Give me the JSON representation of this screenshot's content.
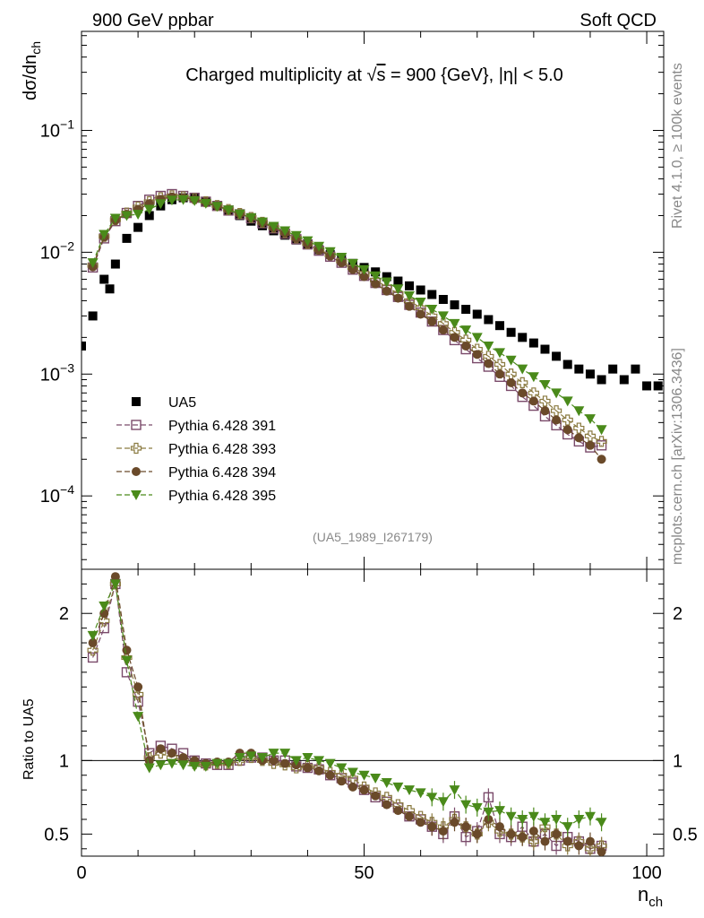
{
  "chart_data": [
    {
      "type": "scatter",
      "panel": "main",
      "header_left": "900 GeV ppbar",
      "header_right": "Soft QCD",
      "title_prefix": "Charged multiplicity at ",
      "title_sqrt": "√",
      "title_s": "s",
      "title_suffix": " = 900 {GeV}, |η| < 5.0",
      "ylabel": "dσ/dn",
      "ylabel_sub": "ch",
      "yscale": "log",
      "ylim": [
        2.5e-05,
        0.65
      ],
      "xlim": [
        0,
        103
      ],
      "ytick_labels": [
        {
          "base": "10",
          "exp": "−1"
        },
        {
          "base": "10",
          "exp": "−2"
        },
        {
          "base": "10",
          "exp": "−3"
        },
        {
          "base": "10",
          "exp": "−4"
        }
      ],
      "ytick_values": [
        0.1,
        0.01,
        0.001,
        0.0001
      ],
      "ref_tag": "(UA5_1989_I267179)",
      "side_label_top": "Rivet 4.1.0, ≥ 100k events",
      "side_label_bottom": "mcplots.cern.ch [arXiv:1306.3436]",
      "legend": [
        {
          "name": "UA5",
          "color": "#000000",
          "marker": "square-filled"
        },
        {
          "name": "Pythia 6.428 391",
          "color": "#7a4a6a",
          "marker": "square-open"
        },
        {
          "name": "Pythia 6.428 393",
          "color": "#8a7a40",
          "marker": "cross-open"
        },
        {
          "name": "Pythia 6.428 394",
          "color": "#6a4a2a",
          "marker": "circle-filled"
        },
        {
          "name": "Pythia 6.428 395",
          "color": "#4a8a1a",
          "marker": "triangle-down-filled"
        }
      ],
      "series": [
        {
          "name": "UA5",
          "x": [
            0,
            2,
            4,
            5,
            6,
            8,
            10,
            12,
            14,
            16,
            18,
            20,
            22,
            24,
            26,
            28,
            30,
            32,
            34,
            36,
            38,
            40,
            42,
            44,
            46,
            48,
            50,
            52,
            54,
            56,
            58,
            60,
            62,
            64,
            66,
            68,
            70,
            72,
            74,
            76,
            78,
            80,
            82,
            84,
            86,
            88,
            90,
            92,
            94,
            96,
            98,
            100,
            102
          ],
          "y": [
            0.0017,
            0.003,
            0.006,
            0.005,
            0.008,
            0.013,
            0.016,
            0.02,
            0.024,
            0.027,
            0.028,
            0.028,
            0.026,
            0.024,
            0.022,
            0.02,
            0.018,
            0.0165,
            0.015,
            0.0138,
            0.0126,
            0.0115,
            0.0105,
            0.0096,
            0.0088,
            0.0081,
            0.0075,
            0.0069,
            0.0063,
            0.0058,
            0.0053,
            0.0049,
            0.0045,
            0.0041,
            0.0037,
            0.0034,
            0.0031,
            0.0028,
            0.0025,
            0.0022,
            0.002,
            0.0018,
            0.0016,
            0.0014,
            0.0012,
            0.0011,
            0.001,
            0.0009,
            0.0011,
            0.0009,
            0.0011,
            0.0008,
            0.0008
          ]
        },
        {
          "name": "Pythia 6.428 391",
          "x": [
            2,
            4,
            6,
            8,
            10,
            12,
            14,
            16,
            18,
            20,
            22,
            24,
            26,
            28,
            30,
            32,
            34,
            36,
            38,
            40,
            42,
            44,
            46,
            48,
            50,
            52,
            54,
            56,
            58,
            60,
            62,
            64,
            66,
            68,
            70,
            72,
            74,
            76,
            78,
            80,
            82,
            84,
            86,
            88,
            90,
            92
          ],
          "y": [
            0.0075,
            0.013,
            0.018,
            0.021,
            0.024,
            0.027,
            0.029,
            0.03,
            0.029,
            0.028,
            0.026,
            0.024,
            0.022,
            0.0205,
            0.019,
            0.0173,
            0.0157,
            0.0142,
            0.0128,
            0.0116,
            0.0103,
            0.0092,
            0.0082,
            0.0072,
            0.0064,
            0.0056,
            0.0049,
            0.0043,
            0.0037,
            0.0032,
            0.0027,
            0.0023,
            0.0019,
            0.0016,
            0.00135,
            0.00115,
            0.00095,
            0.0008,
            0.00065,
            0.00055,
            0.00045,
            0.00038,
            0.00032,
            0.00028,
            0.00025,
            0.00026
          ]
        },
        {
          "name": "Pythia 6.428 393",
          "x": [
            2,
            4,
            6,
            8,
            10,
            12,
            14,
            16,
            18,
            20,
            22,
            24,
            26,
            28,
            30,
            32,
            34,
            36,
            38,
            40,
            42,
            44,
            46,
            48,
            50,
            52,
            54,
            56,
            58,
            60,
            62,
            64,
            66,
            68,
            70,
            72,
            74,
            76,
            78,
            80,
            82,
            84,
            86,
            88,
            90,
            92
          ],
          "y": [
            0.0078,
            0.0135,
            0.0185,
            0.021,
            0.0235,
            0.026,
            0.028,
            0.029,
            0.0285,
            0.0275,
            0.026,
            0.0242,
            0.0224,
            0.0208,
            0.0193,
            0.0176,
            0.016,
            0.0145,
            0.0131,
            0.0118,
            0.0106,
            0.0095,
            0.0085,
            0.0075,
            0.0067,
            0.0059,
            0.0052,
            0.0046,
            0.004,
            0.0035,
            0.003,
            0.0026,
            0.0022,
            0.0019,
            0.0016,
            0.0014,
            0.0012,
            0.001,
            0.00085,
            0.0007,
            0.0006,
            0.0005,
            0.00042,
            0.00036,
            0.00031,
            0.00028
          ]
        },
        {
          "name": "Pythia 6.428 394",
          "x": [
            2,
            4,
            6,
            8,
            10,
            12,
            14,
            16,
            18,
            20,
            22,
            24,
            26,
            28,
            30,
            32,
            34,
            36,
            38,
            40,
            42,
            44,
            46,
            48,
            50,
            52,
            54,
            56,
            58,
            60,
            62,
            64,
            66,
            68,
            70,
            72,
            74,
            76,
            78,
            80,
            82,
            84,
            86,
            88,
            90,
            92
          ],
          "y": [
            0.0076,
            0.0133,
            0.0183,
            0.0205,
            0.0225,
            0.025,
            0.0272,
            0.0285,
            0.028,
            0.0272,
            0.0258,
            0.024,
            0.0223,
            0.0207,
            0.0192,
            0.0175,
            0.0159,
            0.0144,
            0.013,
            0.0117,
            0.0104,
            0.0093,
            0.0082,
            0.0072,
            0.0063,
            0.0055,
            0.0048,
            0.0042,
            0.0036,
            0.0031,
            0.0027,
            0.0023,
            0.002,
            0.0017,
            0.00145,
            0.00122,
            0.001,
            0.00085,
            0.0007,
            0.0006,
            0.0005,
            0.00042,
            0.00035,
            0.0003,
            0.00026,
            0.0002
          ]
        },
        {
          "name": "Pythia 6.428 395",
          "x": [
            2,
            4,
            6,
            8,
            10,
            12,
            14,
            16,
            18,
            20,
            22,
            24,
            26,
            28,
            30,
            32,
            34,
            36,
            38,
            40,
            42,
            44,
            46,
            48,
            50,
            52,
            54,
            56,
            58,
            60,
            62,
            64,
            66,
            68,
            70,
            72,
            74,
            76,
            78,
            80,
            82,
            84,
            86,
            88,
            90,
            92
          ],
          "y": [
            0.0082,
            0.014,
            0.019,
            0.02,
            0.0205,
            0.0225,
            0.025,
            0.0268,
            0.027,
            0.0265,
            0.0252,
            0.0238,
            0.0222,
            0.0206,
            0.0192,
            0.0177,
            0.0163,
            0.015,
            0.0137,
            0.0124,
            0.0112,
            0.0101,
            0.0091,
            0.0081,
            0.0072,
            0.0064,
            0.0057,
            0.005,
            0.0044,
            0.0039,
            0.0034,
            0.003,
            0.0026,
            0.0023,
            0.002,
            0.0017,
            0.0015,
            0.0013,
            0.0011,
            0.00095,
            0.00082,
            0.0007,
            0.0006,
            0.0005,
            0.00043,
            0.00035
          ]
        }
      ]
    },
    {
      "type": "scatter",
      "panel": "ratio",
      "xlabel": "n",
      "xlabel_sub": "ch",
      "ylabel": "Ratio to UA5",
      "ylim": [
        0.35,
        2.3
      ],
      "xlim": [
        0,
        103
      ],
      "ytick_labels": [
        "2",
        "1",
        "0.5"
      ],
      "ytick_values": [
        2,
        1,
        0.5
      ],
      "xtick_labels": [
        "0",
        "50",
        "100"
      ],
      "xtick_values": [
        0,
        50,
        100
      ],
      "reference_line": 1,
      "series": [
        {
          "name": "Pythia 6.428 391",
          "x": [
            2,
            4,
            6,
            8,
            10,
            12,
            14,
            16,
            18,
            20,
            22,
            24,
            26,
            28,
            30,
            32,
            34,
            36,
            38,
            40,
            42,
            44,
            46,
            48,
            50,
            52,
            54,
            56,
            58,
            60,
            62,
            64,
            66,
            68,
            70,
            72,
            74,
            76,
            78,
            80,
            82,
            84,
            86,
            88,
            90,
            92
          ],
          "y": [
            1.7,
            1.9,
            2.2,
            1.6,
            1.4,
            1.05,
            1.1,
            1.08,
            1.05,
            1.0,
            0.98,
            0.97,
            0.97,
            1.0,
            1.02,
            1.02,
            1.0,
            1.0,
            0.96,
            0.95,
            0.94,
            0.9,
            0.88,
            0.85,
            0.8,
            0.75,
            0.72,
            0.68,
            0.62,
            0.6,
            0.55,
            0.5,
            0.62,
            0.48,
            0.52,
            0.75,
            0.5,
            0.48,
            0.55,
            0.45,
            0.5,
            0.42,
            0.48,
            0.45,
            0.4,
            0.42
          ]
        },
        {
          "name": "Pythia 6.428 393",
          "x": [
            2,
            4,
            6,
            8,
            10,
            12,
            14,
            16,
            18,
            20,
            22,
            24,
            26,
            28,
            30,
            32,
            34,
            36,
            38,
            40,
            42,
            44,
            46,
            48,
            50,
            52,
            54,
            56,
            58,
            60,
            62,
            64,
            66,
            68,
            70,
            72,
            74,
            76,
            78,
            80,
            82,
            84,
            86,
            88,
            90,
            92
          ],
          "y": [
            1.75,
            1.95,
            2.2,
            1.7,
            1.45,
            1.02,
            1.05,
            1.02,
            1.0,
            0.98,
            0.97,
            0.98,
            0.98,
            1.0,
            1.02,
            1.0,
            0.98,
            0.97,
            0.95,
            0.96,
            0.95,
            0.92,
            0.9,
            0.88,
            0.82,
            0.78,
            0.75,
            0.7,
            0.66,
            0.62,
            0.58,
            0.55,
            0.6,
            0.55,
            0.5,
            0.58,
            0.52,
            0.5,
            0.48,
            0.45,
            0.55,
            0.5,
            0.42,
            0.45,
            0.4,
            0.42
          ]
        },
        {
          "name": "Pythia 6.428 394",
          "x": [
            2,
            4,
            6,
            8,
            10,
            12,
            14,
            16,
            18,
            20,
            22,
            24,
            26,
            28,
            30,
            32,
            34,
            36,
            38,
            40,
            42,
            44,
            46,
            48,
            50,
            52,
            54,
            56,
            58,
            60,
            62,
            64,
            66,
            68,
            70,
            72,
            74,
            76,
            78,
            80,
            82,
            84,
            86,
            88,
            90,
            92
          ],
          "y": [
            1.8,
            2.0,
            2.25,
            1.75,
            1.5,
            1.0,
            1.08,
            1.05,
            1.02,
            1.0,
            0.98,
            0.99,
            0.99,
            1.05,
            1.05,
            1.0,
            1.0,
            0.98,
            0.97,
            0.95,
            0.93,
            0.9,
            0.86,
            0.82,
            0.8,
            0.76,
            0.7,
            0.66,
            0.62,
            0.58,
            0.55,
            0.52,
            0.58,
            0.55,
            0.5,
            0.6,
            0.55,
            0.5,
            0.48,
            0.52,
            0.45,
            0.5,
            0.45,
            0.42,
            0.45,
            0.38
          ]
        },
        {
          "name": "Pythia 6.428 395",
          "x": [
            2,
            4,
            6,
            8,
            10,
            12,
            14,
            16,
            18,
            20,
            22,
            24,
            26,
            28,
            30,
            32,
            34,
            36,
            38,
            40,
            42,
            44,
            46,
            48,
            50,
            52,
            54,
            56,
            58,
            60,
            62,
            64,
            66,
            68,
            70,
            72,
            74,
            76,
            78,
            80,
            82,
            84,
            86,
            88,
            90,
            92
          ],
          "y": [
            1.85,
            2.05,
            2.2,
            1.68,
            1.3,
            0.95,
            0.97,
            0.98,
            0.97,
            0.96,
            0.96,
            0.98,
            0.98,
            1.02,
            1.03,
            1.02,
            1.05,
            1.05,
            1.0,
            1.02,
            1.0,
            0.98,
            0.95,
            0.92,
            0.9,
            0.88,
            0.85,
            0.82,
            0.8,
            0.78,
            0.75,
            0.72,
            0.8,
            0.7,
            0.68,
            0.65,
            0.66,
            0.62,
            0.6,
            0.62,
            0.58,
            0.6,
            0.55,
            0.6,
            0.62,
            0.58
          ]
        }
      ]
    }
  ]
}
